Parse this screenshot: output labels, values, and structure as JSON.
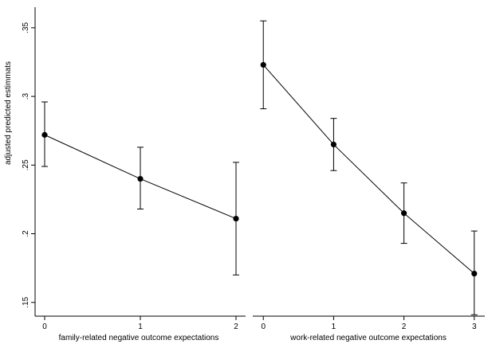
{
  "chart_data": [
    {
      "type": "line",
      "xlabel": "family-related negative outcome expectations",
      "ylabel": "adjusted predicted estimmats",
      "x": [
        0,
        1,
        2
      ],
      "x_ticks": [
        "0",
        "1",
        "2"
      ],
      "xlim": [
        -0.1,
        2.1
      ],
      "ylim": [
        0.14,
        0.365
      ],
      "y_ticks": [
        ".15",
        ".2",
        ".25",
        ".3",
        ".35"
      ],
      "y_tick_values": [
        0.15,
        0.2,
        0.25,
        0.3,
        0.35
      ],
      "series": [
        {
          "values": [
            0.272,
            0.24,
            0.211
          ],
          "ci_lower": [
            0.249,
            0.218,
            0.17
          ],
          "ci_upper": [
            0.296,
            0.263,
            0.252
          ]
        }
      ],
      "grid": false
    },
    {
      "type": "line",
      "xlabel": "work-related negative outcome expectations",
      "ylabel": "",
      "x": [
        0,
        1,
        2,
        3
      ],
      "x_ticks": [
        "0",
        "1",
        "2",
        "3"
      ],
      "xlim": [
        -0.15,
        3.15
      ],
      "ylim": [
        0.14,
        0.365
      ],
      "series": [
        {
          "values": [
            0.323,
            0.265,
            0.215,
            0.171
          ],
          "ci_lower": [
            0.291,
            0.246,
            0.193,
            0.141
          ],
          "ci_upper": [
            0.355,
            0.284,
            0.237,
            0.202
          ]
        }
      ],
      "grid": false
    }
  ]
}
